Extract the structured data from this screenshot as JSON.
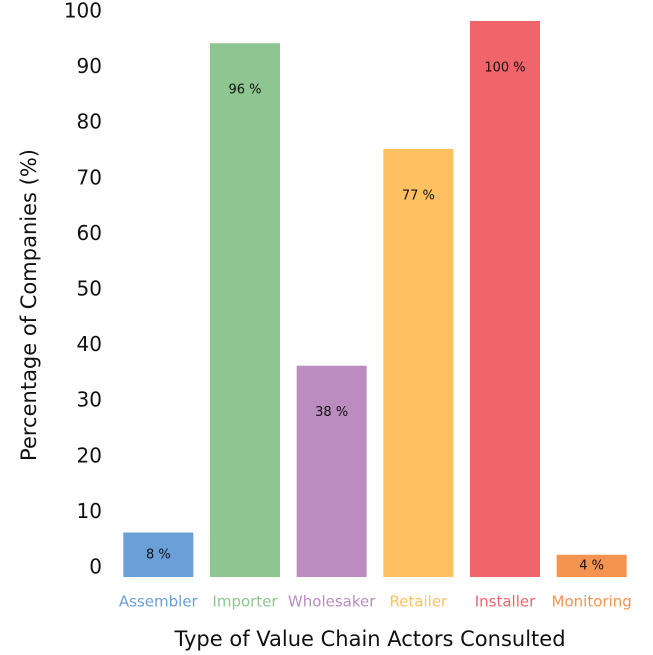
{
  "chart_data": {
    "type": "bar",
    "xlabel": "Type of Value Chain Actors Consulted",
    "ylabel": "Percentage of Companies (%)",
    "categories": [
      "Assembler",
      "Importer",
      "Wholesaker",
      "Retailer",
      "Installer",
      "Monitoring"
    ],
    "values": [
      8,
      96,
      38,
      77,
      100,
      4
    ],
    "value_labels": [
      "8 %",
      "96 %",
      "38 %",
      "77 %",
      "100 %",
      "4 %"
    ],
    "colors": [
      "#6a9fd8",
      "#8fc591",
      "#ba8cc0",
      "#fec061",
      "#f0646a",
      "#f59350"
    ],
    "ylim": [
      0,
      100
    ],
    "yticks": [
      0,
      10,
      20,
      30,
      40,
      50,
      60,
      70,
      80,
      90,
      100
    ],
    "grid": false
  }
}
